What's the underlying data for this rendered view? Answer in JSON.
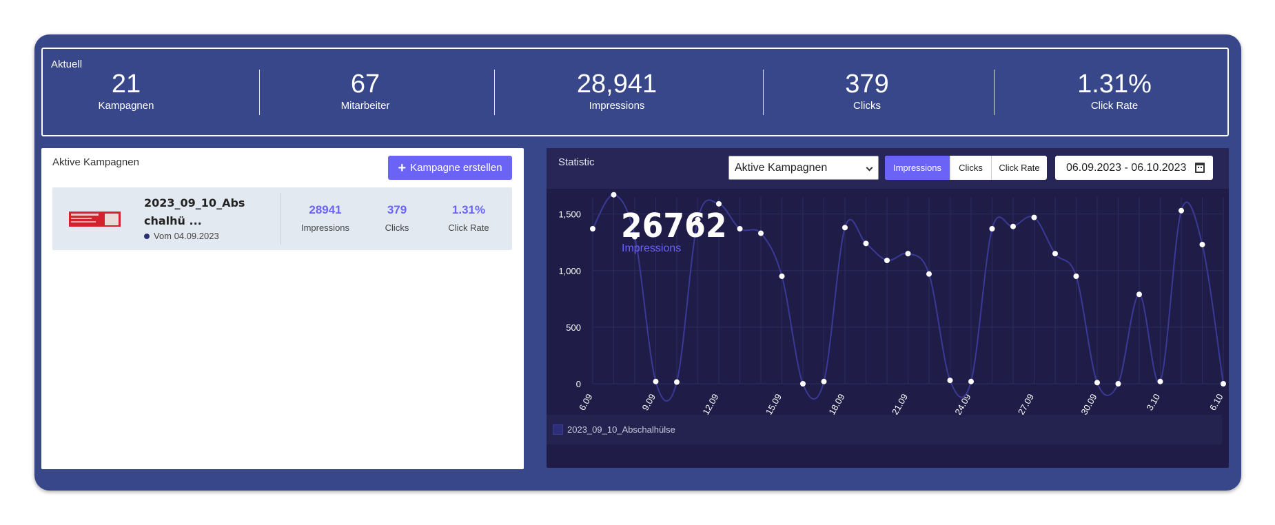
{
  "summary": {
    "title": "Aktuell",
    "items": [
      {
        "value": "21",
        "label": "Kampagnen"
      },
      {
        "value": "67",
        "label": "Mitarbeiter"
      },
      {
        "value": "28,941",
        "label": "Impressions"
      },
      {
        "value": "379",
        "label": "Clicks"
      },
      {
        "value": "1.31%",
        "label": "Click Rate"
      }
    ]
  },
  "campaigns": {
    "title": "Aktive Kampagnen",
    "create_label": "Kampagne erstellen",
    "items": [
      {
        "name": "2023_09_10_Abschalhü ...",
        "date": "Vom 04.09.2023",
        "impressions": "28941",
        "impressions_label": "Impressions",
        "clicks": "379",
        "clicks_label": "Clicks",
        "rate": "1.31%",
        "rate_label": "Click Rate"
      }
    ]
  },
  "statistic": {
    "title": "Statistic",
    "select_value": "Aktive Kampagnen",
    "tabs": [
      "Impressions",
      "Clicks",
      "Click Rate"
    ],
    "active_tab": "Impressions",
    "date_range": "06.09.2023 - 06.10.2023",
    "tooltip_value": "26762",
    "tooltip_label": "Impressions",
    "legend": "2023_09_10_Abschalhülse"
  },
  "colors": {
    "accent": "#6b63f5",
    "frame": "#37478a",
    "chart_bg": "#1f1d48",
    "line": "#3a3a96"
  },
  "chart_data": {
    "type": "line",
    "title": "",
    "xlabel": "",
    "ylabel": "",
    "ylim": [
      0,
      1650
    ],
    "yticks": [
      "0",
      "500",
      "1,000",
      "1,500"
    ],
    "ytick_values": [
      0,
      500,
      1000,
      1500
    ],
    "xtick_labels": [
      "6.09",
      "9.09",
      "12.09",
      "15.09",
      "18.09",
      "21.09",
      "24.09",
      "27.09",
      "30.09",
      "3.10",
      "6.10"
    ],
    "x": [
      "6.09",
      "7.09",
      "8.09",
      "9.09",
      "10.09",
      "11.09",
      "12.09",
      "13.09",
      "14.09",
      "15.09",
      "16.09",
      "17.09",
      "18.09",
      "19.09",
      "20.09",
      "21.09",
      "22.09",
      "23.09",
      "24.09",
      "25.09",
      "26.09",
      "27.09",
      "28.09",
      "29.09",
      "30.09",
      "1.10",
      "2.10",
      "3.10",
      "4.10",
      "5.10",
      "6.10"
    ],
    "series": [
      {
        "name": "2023_09_10_Abschalhülse",
        "values": [
          1370,
          1670,
          1300,
          20,
          15,
          1450,
          1590,
          1370,
          1330,
          950,
          0,
          20,
          1380,
          1240,
          1090,
          1150,
          970,
          30,
          20,
          1370,
          1390,
          1470,
          1150,
          950,
          10,
          0,
          790,
          20,
          1530,
          1230,
          0
        ]
      }
    ],
    "grid": true
  }
}
